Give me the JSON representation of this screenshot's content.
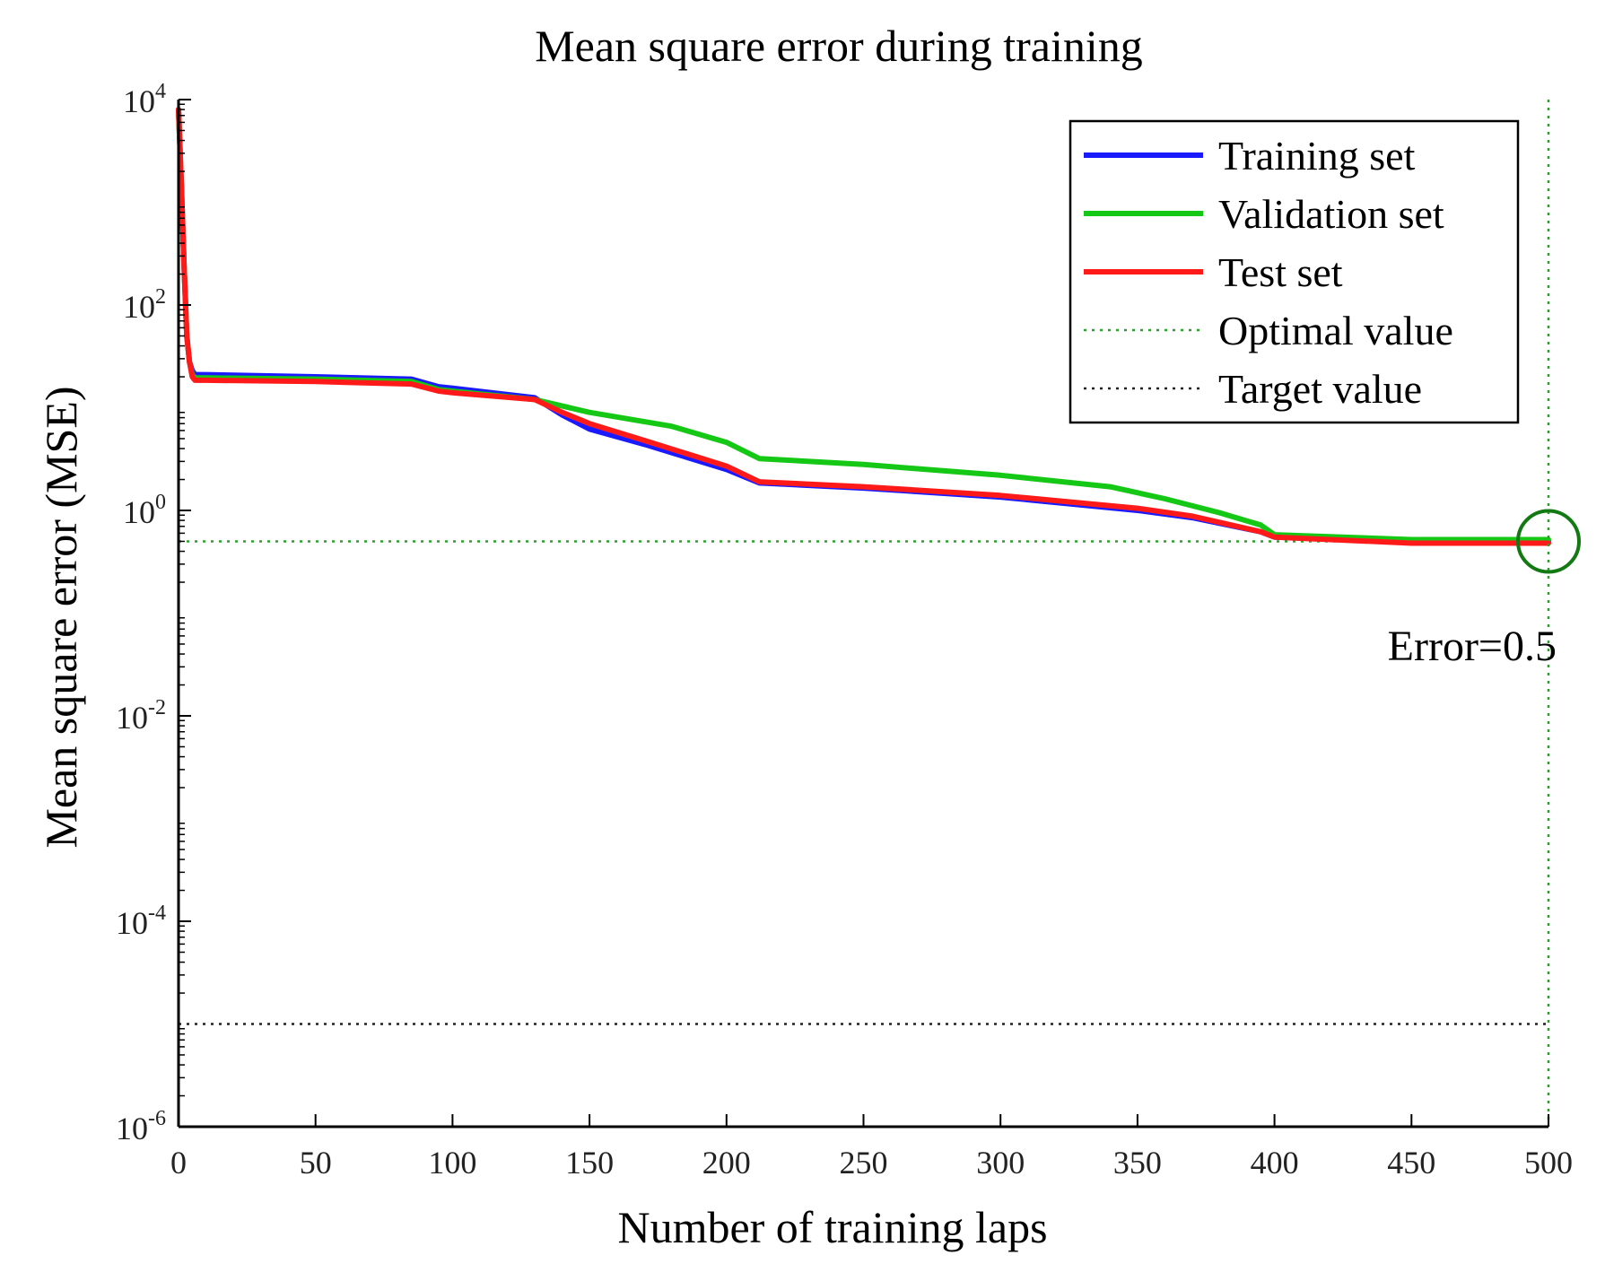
{
  "chart_data": {
    "type": "line",
    "title": "Mean square error during training",
    "xlabel": "Number of training laps",
    "ylabel": "Mean square error (MSE)",
    "yscale": "log",
    "xlim": [
      0,
      500
    ],
    "ylim": [
      1e-06,
      10000
    ],
    "xticks": [
      0,
      50,
      100,
      150,
      200,
      250,
      300,
      350,
      400,
      450,
      500
    ],
    "yticks": [
      {
        "value": 1e-06,
        "base": "10",
        "exp": "-6"
      },
      {
        "value": 0.0001,
        "base": "10",
        "exp": "-4"
      },
      {
        "value": 0.01,
        "base": "10",
        "exp": "-2"
      },
      {
        "value": 1,
        "base": "10",
        "exp": "0"
      },
      {
        "value": 100,
        "base": "10",
        "exp": "2"
      },
      {
        "value": 10000,
        "base": "10",
        "exp": "4"
      }
    ],
    "series": [
      {
        "name": "Training set",
        "color": "#1a1aff",
        "style": "solid",
        "x": [
          0,
          1,
          2,
          3,
          4,
          5,
          6,
          10,
          50,
          85,
          95,
          100,
          130,
          140,
          150,
          170,
          200,
          212,
          250,
          300,
          350,
          370,
          395,
          400,
          450,
          500
        ],
        "y": [
          8000,
          1500,
          250,
          50,
          28,
          23,
          21,
          21,
          20,
          19,
          16,
          15.5,
          12.5,
          8.5,
          6.2,
          4.4,
          2.5,
          1.85,
          1.65,
          1.35,
          1.0,
          0.85,
          0.62,
          0.55,
          0.5,
          0.5
        ]
      },
      {
        "name": "Validation set",
        "color": "#16c816",
        "style": "solid",
        "x": [
          0,
          1,
          2,
          3,
          4,
          5,
          6,
          10,
          50,
          85,
          95,
          100,
          130,
          150,
          180,
          200,
          212,
          250,
          300,
          340,
          360,
          380,
          395,
          400,
          450,
          500
        ],
        "y": [
          8000,
          1500,
          250,
          50,
          28,
          21,
          19.5,
          19.5,
          19,
          18,
          15,
          14.5,
          12,
          9,
          6.6,
          4.6,
          3.2,
          2.8,
          2.2,
          1.7,
          1.3,
          0.95,
          0.72,
          0.58,
          0.52,
          0.52
        ]
      },
      {
        "name": "Test set",
        "color": "#ff1a1a",
        "style": "solid",
        "x": [
          0,
          1,
          2,
          3,
          4,
          5,
          6,
          10,
          50,
          85,
          95,
          100,
          130,
          140,
          150,
          170,
          200,
          212,
          250,
          300,
          350,
          370,
          395,
          400,
          450,
          500
        ],
        "y": [
          8000,
          1500,
          250,
          50,
          28,
          20,
          18.5,
          18.5,
          18,
          17,
          14.5,
          14,
          12,
          9,
          7,
          4.8,
          2.7,
          1.9,
          1.7,
          1.4,
          1.05,
          0.88,
          0.62,
          0.55,
          0.48,
          0.48
        ]
      }
    ],
    "reference_lines": [
      {
        "name": "Optimal value",
        "color": "#2ca02c",
        "style": "dotted",
        "y": 0.5
      },
      {
        "name": "Target value",
        "color": "#222222",
        "style": "dotted",
        "y": 1e-05
      }
    ],
    "vertical_line": {
      "x": 500,
      "color": "#2ca02c",
      "style": "dotted"
    },
    "marker": {
      "x": 500,
      "y": 0.5,
      "shape": "circle",
      "color": "#137a13"
    },
    "annotation": {
      "text": "Error=0.5",
      "x": 500,
      "y": 0.5
    },
    "legend": {
      "position": "top-right",
      "entries": [
        "Training set",
        "Validation set",
        "Test set",
        "Optimal value",
        "Target value"
      ]
    },
    "grid": false
  }
}
